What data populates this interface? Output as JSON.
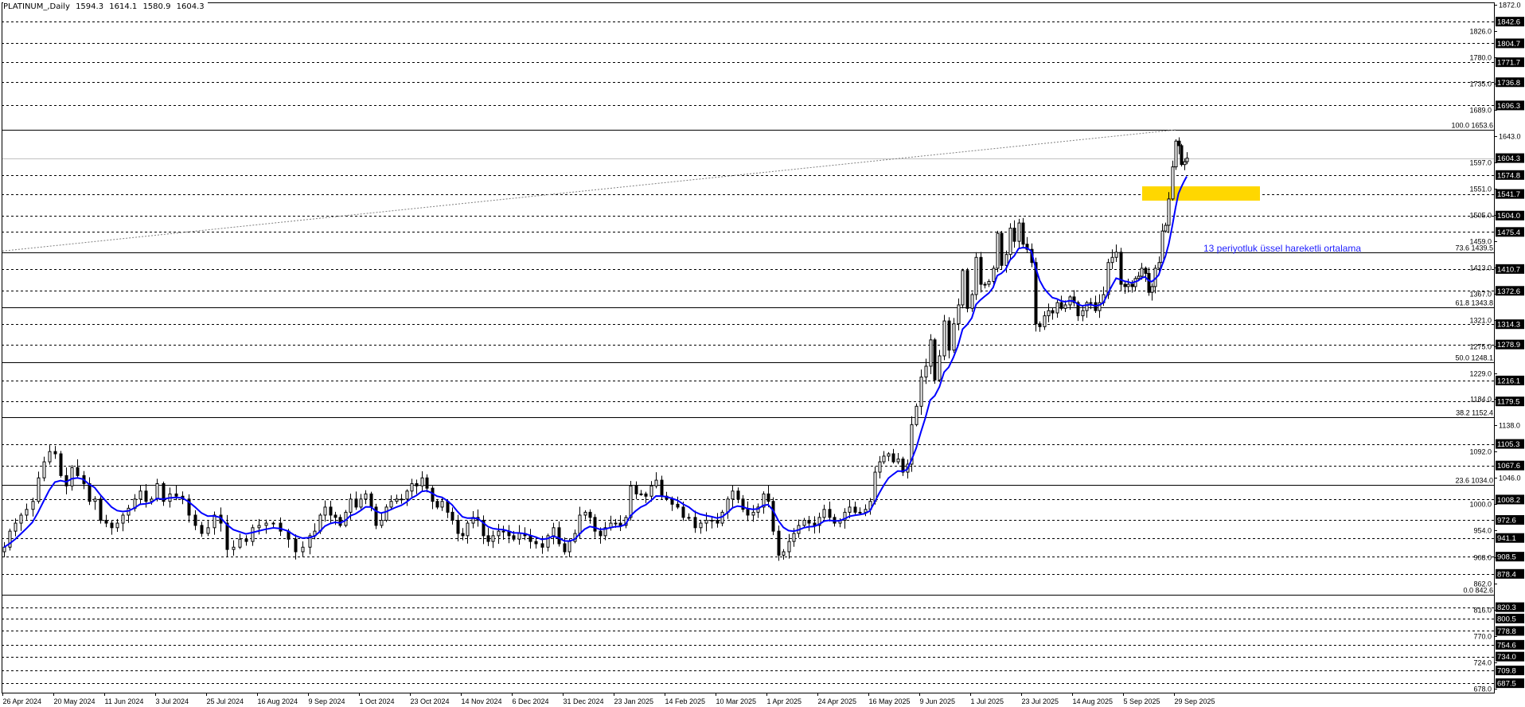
{
  "header": {
    "symbol": "PLATINUM_,Daily",
    "open": "1594.3",
    "high": "1614.1",
    "low": "1580.9",
    "close": "1604.3"
  },
  "annotation": {
    "text": "13 periyotluk üssel hareketli ortalama",
    "color": "#2222ff"
  },
  "chart_data": {
    "type": "candlestick",
    "ylim": [
      678.0,
      1872.0
    ],
    "grid": false,
    "y_tick_labels": [
      "1872.0",
      "1826.0",
      "1780.0",
      "1735.0",
      "1689.0",
      "1643.0",
      "1597.0",
      "1551.0",
      "1505.0",
      "1459.0",
      "1413.0",
      "1367.0",
      "1321.0",
      "1275.0",
      "1229.0",
      "1184.0",
      "1138.0",
      "1092.0",
      "1046.0",
      "1000.0",
      "954.0",
      "908.0",
      "862.0",
      "816.0",
      "770.0",
      "724.0",
      "678.0"
    ],
    "x_tick_labels": [
      "26 Apr 2024",
      "20 May 2024",
      "11 Jun 2024",
      "3 Jul 2024",
      "25 Jul 2024",
      "16 Aug 2024",
      "9 Sep 2024",
      "1 Oct 2024",
      "23 Oct 2024",
      "14 Nov 2024",
      "6 Dec 2024",
      "31 Dec 2024",
      "23 Jan 2025",
      "14 Feb 2025",
      "10 Mar 2025",
      "1 Apr 2025",
      "24 Apr 2025",
      "16 May 2025",
      "9 Jun 2025",
      "1 Jul 2025",
      "23 Jul 2025",
      "14 Aug 2025",
      "5 Sep 2025",
      "29 Sep 2025"
    ],
    "closes_by_period": [
      [
        925,
        953,
        967,
        981,
        991,
        1005,
        1046,
        1074,
        1092
      ],
      [
        1088,
        1050,
        1032,
        1064,
        1050,
        1036,
        1005,
        1009,
        972
      ],
      [
        967,
        959,
        967,
        981,
        993,
        1009,
        1023,
        1005,
        1009
      ],
      [
        1036,
        1005,
        1018,
        1014,
        1009,
        981,
        963,
        949
      ],
      [
        959,
        981,
        967,
        921,
        925,
        939,
        935,
        959
      ],
      [
        963,
        967,
        967,
        953,
        939,
        917,
        925
      ],
      [
        945,
        953,
        981,
        995,
        981,
        977,
        963,
        986,
        1009,
        995
      ],
      [
        1009,
        1018,
        995,
        963,
        972,
        995,
        1005,
        1009,
        1009,
        1023
      ],
      [
        1036,
        1032,
        1046,
        1028,
        1005,
        995,
        1005,
        986,
        972,
        949
      ],
      [
        945,
        967,
        977,
        972,
        945,
        935,
        945,
        953,
        953,
        945
      ],
      [
        939,
        949,
        945,
        935,
        931,
        925,
        945,
        959,
        931
      ],
      [
        917,
        935,
        949,
        981,
        986,
        977,
        953,
        945,
        959,
        967
      ],
      [
        967,
        963,
        977,
        1032,
        1018,
        1018,
        1014,
        1032,
        1042,
        1014
      ],
      [
        1009,
        1000,
        995,
        977,
        977,
        959,
        967,
        972,
        972
      ],
      [
        967,
        986,
        1009,
        1023,
        1009,
        991,
        981,
        986,
        995,
        1018
      ],
      [
        1005,
        953,
        911,
        917,
        935,
        949,
        963,
        972,
        967,
        963
      ],
      [
        977,
        991,
        977,
        967,
        972,
        986,
        995,
        986,
        986,
        991
      ],
      [
        1005,
        1056,
        1074,
        1084,
        1088,
        1074,
        1079,
        1056,
        1070,
        1139,
        1171
      ],
      [
        1222,
        1241,
        1287,
        1217,
        1259,
        1320,
        1269,
        1315,
        1348,
        1408,
        1342
      ],
      [
        1366,
        1431,
        1384,
        1384,
        1389,
        1412,
        1473,
        1417,
        1436,
        1482,
        1459,
        1491
      ],
      [
        1454,
        1445,
        1422,
        1315,
        1310,
        1329,
        1338,
        1334,
        1352,
        1342,
        1348,
        1362
      ],
      [
        1352,
        1329,
        1338,
        1352,
        1352,
        1338,
        1352,
        1366,
        1422,
        1431,
        1440,
        1384
      ],
      [
        1380,
        1384,
        1380,
        1394,
        1398,
        1412,
        1403,
        1370,
        1380,
        1412,
        1422,
        1477,
        1487,
        1533,
        1589
      ],
      [
        1634,
        1626,
        1593,
        1598,
        1604.3
      ]
    ],
    "moving_average": {
      "type": "EMA",
      "period": 13,
      "color": "#0000ff"
    },
    "current_price": {
      "value": 1604.3,
      "label": "1604.3",
      "color": "#c0c0c0"
    },
    "horizontal_levels": [
      "1842.6",
      "1804.7",
      "1771.7",
      "1736.8",
      "1696.3",
      "1574.8",
      "1541.7",
      "1504.0",
      "1475.4",
      "1410.7",
      "1372.6",
      "1314.3",
      "1278.9",
      "1216.1",
      "1179.5",
      "1105.3",
      "1067.6",
      "1008.2",
      "972.6",
      "941.1",
      "908.5",
      "878.4",
      "820.3",
      "800.5",
      "778.8",
      "754.6",
      "734.0",
      "709.8",
      "687.5"
    ],
    "fibonacci_levels": [
      {
        "ratio": "100.0",
        "price": "1653.6"
      },
      {
        "ratio": "73.6",
        "price": "1439.5"
      },
      {
        "ratio": "61.8",
        "price": "1343.8"
      },
      {
        "ratio": "50.0",
        "price": "1248.1"
      },
      {
        "ratio": "38.2",
        "price": "1152.4"
      },
      {
        "ratio": "23.6",
        "price": "1034.0"
      },
      {
        "ratio": "0.0",
        "price": "842.6"
      }
    ],
    "trendline": {
      "from_price": 1442,
      "to_price": 1653.6,
      "from_date": "26 Apr 2024",
      "style": "dotted"
    },
    "highlight_zone": {
      "price_top": 1555,
      "price_bottom": 1530,
      "color": "#ffd700"
    }
  }
}
